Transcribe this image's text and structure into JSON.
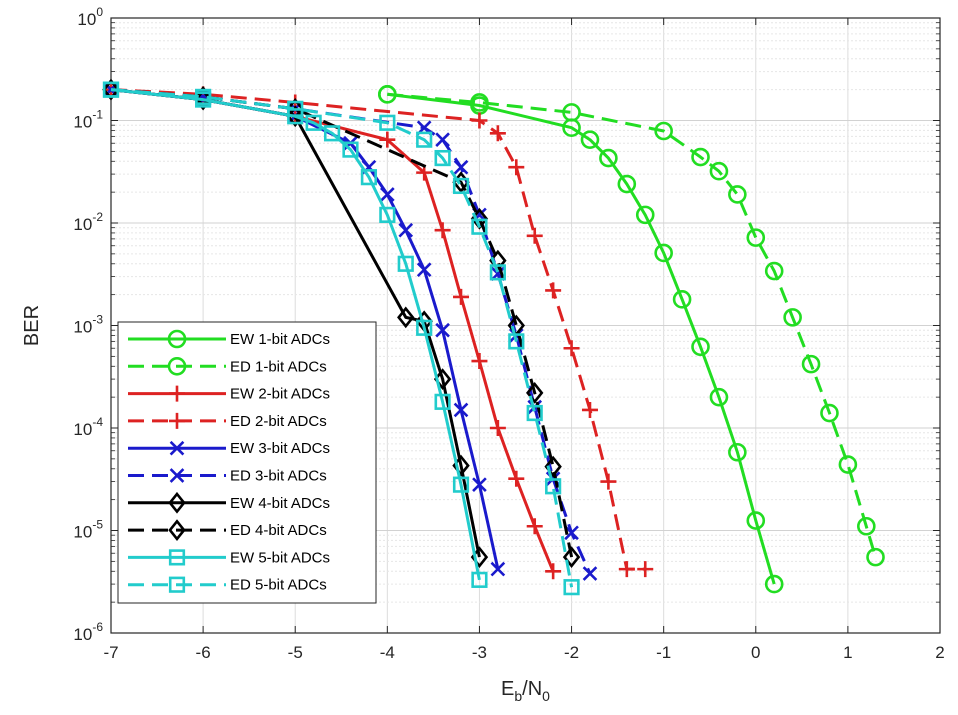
{
  "chart_data": {
    "type": "line",
    "xlabel": "E_b/N_0",
    "ylabel": "BER",
    "xlim": [
      -7,
      2
    ],
    "ylim": [
      1e-06,
      1
    ],
    "yscale": "log",
    "xticks": [
      "-7",
      "-6",
      "-5",
      "-4",
      "-3",
      "-2",
      "-1",
      "0",
      "1",
      "2"
    ],
    "yticks": [
      {
        "base": "10",
        "exp": "0"
      },
      {
        "base": "10",
        "exp": "-1"
      },
      {
        "base": "10",
        "exp": "-2"
      },
      {
        "base": "10",
        "exp": "-3"
      },
      {
        "base": "10",
        "exp": "-4"
      },
      {
        "base": "10",
        "exp": "-5"
      },
      {
        "base": "10",
        "exp": "-6"
      }
    ],
    "grid": true,
    "legend_position": "bottom-left",
    "series": [
      {
        "name": "EW 1-bit ADCs",
        "color": "#22dd22",
        "dash": "solid",
        "marker": "circle",
        "x": [
          -4,
          -3,
          -2,
          -1.8,
          -1.6,
          -1.4,
          -1.2,
          -1.0,
          -0.8,
          -0.6,
          -0.4,
          -0.2,
          0.0,
          0.2
        ],
        "y": [
          0.18,
          0.14,
          0.085,
          0.065,
          0.043,
          0.024,
          0.012,
          0.0051,
          0.0018,
          0.00062,
          0.0002,
          5.8e-05,
          1.25e-05,
          3e-06
        ]
      },
      {
        "name": "ED 1-bit ADCs",
        "color": "#22dd22",
        "dash": "dashed",
        "marker": "circle",
        "x": [
          -4,
          -3,
          -2,
          -1,
          -0.6,
          -0.4,
          -0.2,
          0.0,
          0.2,
          0.4,
          0.6,
          0.8,
          1.0,
          1.2,
          1.3
        ],
        "y": [
          0.18,
          0.15,
          0.12,
          0.079,
          0.044,
          0.032,
          0.019,
          0.0072,
          0.0034,
          0.0012,
          0.00042,
          0.00014,
          4.4e-05,
          1.1e-05,
          5.5e-06
        ]
      },
      {
        "name": "EW 2-bit ADCs",
        "color": "#dd2222",
        "dash": "solid",
        "marker": "plus",
        "x": [
          -7,
          -6,
          -5,
          -4,
          -3.6,
          -3.4,
          -3.2,
          -3.0,
          -2.8,
          -2.6,
          -2.4,
          -2.2
        ],
        "y": [
          0.2,
          0.16,
          0.11,
          0.065,
          0.031,
          0.0085,
          0.0019,
          0.00045,
          0.0001,
          3.2e-05,
          1.1e-05,
          4e-06
        ]
      },
      {
        "name": "ED 2-bit ADCs",
        "color": "#dd2222",
        "dash": "dashed",
        "marker": "plus",
        "x": [
          -7,
          -6,
          -5,
          -3,
          -2.8,
          -2.6,
          -2.4,
          -2.2,
          -2.0,
          -1.8,
          -1.6,
          -1.4,
          -1.2
        ],
        "y": [
          0.2,
          0.18,
          0.15,
          0.1,
          0.075,
          0.035,
          0.0075,
          0.0022,
          0.0006,
          0.00015,
          3e-05,
          4.2e-06,
          4.2e-06
        ]
      },
      {
        "name": "EW 3-bit ADCs",
        "color": "#1a1acc",
        "dash": "solid",
        "marker": "x",
        "x": [
          -7,
          -6,
          -5,
          -4.4,
          -4.2,
          -4.0,
          -3.8,
          -3.6,
          -3.4,
          -3.2,
          -3.0,
          -2.8
        ],
        "y": [
          0.2,
          0.16,
          0.11,
          0.06,
          0.035,
          0.019,
          0.0085,
          0.0035,
          0.0009,
          0.00015,
          2.8e-05,
          4.2e-06
        ]
      },
      {
        "name": "ED 3-bit ADCs",
        "color": "#1a1acc",
        "dash": "dashed",
        "marker": "x",
        "x": [
          -7,
          -6,
          -5,
          -3.6,
          -3.4,
          -3.2,
          -3.0,
          -2.8,
          -2.6,
          -2.4,
          -2.2,
          -2.0,
          -1.8
        ],
        "y": [
          0.2,
          0.17,
          0.13,
          0.085,
          0.065,
          0.035,
          0.012,
          0.0032,
          0.0008,
          0.00016,
          3.2e-05,
          9.5e-06,
          3.8e-06
        ]
      },
      {
        "name": "EW 4-bit ADCs",
        "color": "#000000",
        "dash": "solid",
        "marker": "diamond",
        "x": [
          -7,
          -6,
          -5,
          -3.8,
          -3.6,
          -3.4,
          -3.2,
          -3.0
        ],
        "y": [
          0.2,
          0.16,
          0.11,
          0.0012,
          0.0011,
          0.0003,
          4.3e-05,
          5.5e-06
        ]
      },
      {
        "name": "ED 4-bit ADCs",
        "color": "#000000",
        "dash": "dashed",
        "marker": "diamond",
        "x": [
          -7,
          -6,
          -5,
          -3.2,
          -3.0,
          -2.8,
          -2.6,
          -2.4,
          -2.2,
          -2.0
        ],
        "y": [
          0.2,
          0.17,
          0.13,
          0.025,
          0.011,
          0.0043,
          0.001,
          0.00022,
          4.2e-05,
          5.5e-06
        ]
      },
      {
        "name": "EW 5-bit ADCs",
        "color": "#22cccc",
        "dash": "solid",
        "marker": "square",
        "x": [
          -7,
          -6,
          -5,
          -4.8,
          -4.6,
          -4.4,
          -4.2,
          -4.0,
          -3.8,
          -3.6,
          -3.4,
          -3.2,
          -3.0
        ],
        "y": [
          0.2,
          0.16,
          0.11,
          0.095,
          0.075,
          0.052,
          0.028,
          0.012,
          0.004,
          0.00095,
          0.00018,
          2.8e-05,
          3.3e-06
        ]
      },
      {
        "name": "ED 5-bit ADCs",
        "color": "#22cccc",
        "dash": "dashed",
        "marker": "square",
        "x": [
          -7,
          -6,
          -5,
          -4.0,
          -3.6,
          -3.4,
          -3.2,
          -3.0,
          -2.8,
          -2.6,
          -2.4,
          -2.2,
          -2.0
        ],
        "y": [
          0.2,
          0.17,
          0.13,
          0.095,
          0.065,
          0.043,
          0.023,
          0.0092,
          0.0033,
          0.0007,
          0.00014,
          2.7e-05,
          2.8e-06
        ]
      }
    ]
  }
}
